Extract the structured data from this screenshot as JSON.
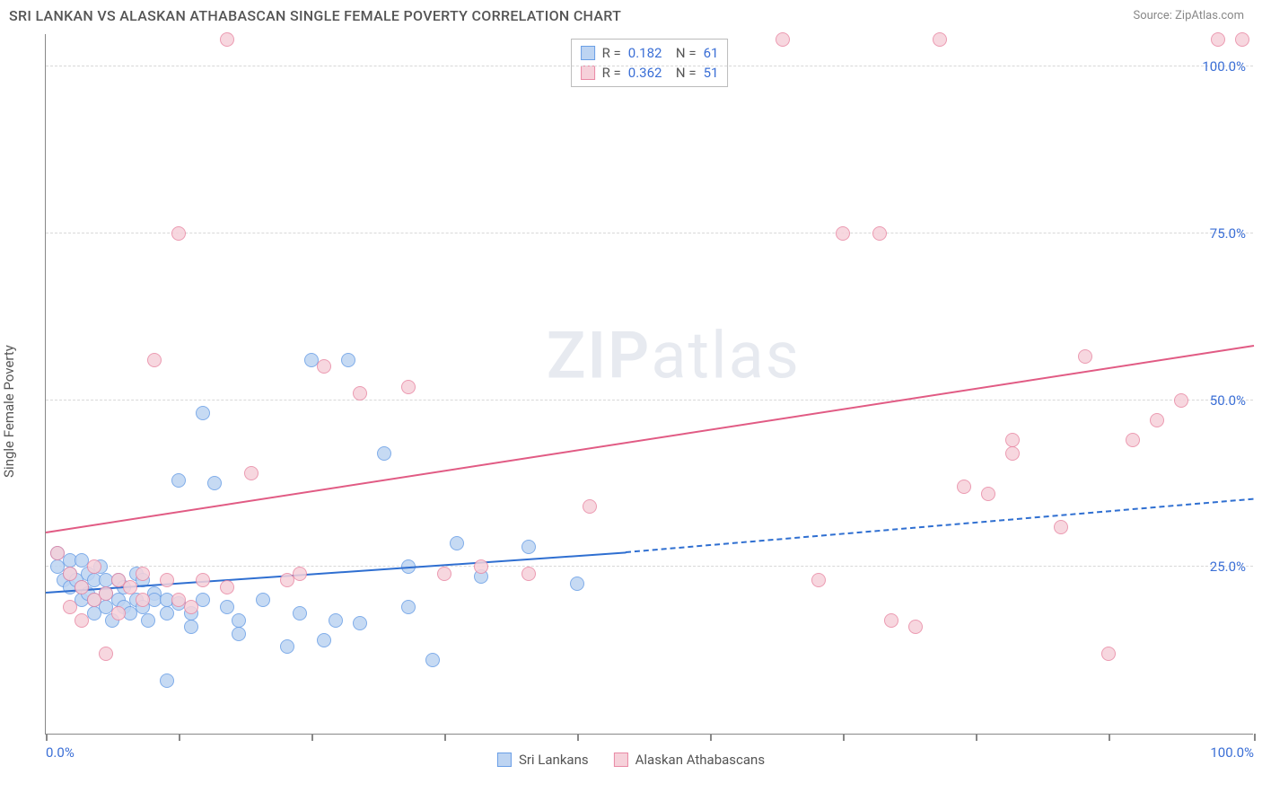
{
  "header": {
    "title": "SRI LANKAN VS ALASKAN ATHABASCAN SINGLE FEMALE POVERTY CORRELATION CHART",
    "source": "Source: ZipAtlas.com"
  },
  "chart": {
    "type": "scatter",
    "ylabel": "Single Female Poverty",
    "xlim": [
      0,
      100
    ],
    "ylim": [
      0,
      105
    ],
    "yticks": [
      25,
      50,
      75,
      100
    ],
    "ytick_labels": [
      "25.0%",
      "50.0%",
      "75.0%",
      "100.0%"
    ],
    "xticks": [
      0,
      11,
      22,
      33,
      44,
      55,
      66,
      77,
      88,
      100
    ],
    "xtick_labels_shown": {
      "0": "0.0%",
      "100": "100.0%"
    },
    "grid_color": "#d8d8d8",
    "axis_color": "#888888",
    "background_color": "#ffffff",
    "tick_label_color": "#3b6fd6",
    "marker_radius": 8,
    "marker_border": 1.5,
    "watermark": "ZIPatlas",
    "series": [
      {
        "name": "Sri Lankans",
        "fill_color": "#bdd4f2",
        "border_color": "#6a9fe6",
        "trend_color": "#2f6fd1",
        "trend": {
          "x1": 0,
          "y1": 21,
          "x2": 48,
          "y2": 27,
          "dashed_to_x": 100,
          "dashed_to_y": 35
        },
        "stats": {
          "R": "0.182",
          "N": "61"
        },
        "points": [
          [
            1,
            27
          ],
          [
            1,
            25
          ],
          [
            1.5,
            23
          ],
          [
            2,
            26
          ],
          [
            2,
            22
          ],
          [
            2,
            24
          ],
          [
            2.5,
            23
          ],
          [
            3,
            26
          ],
          [
            3,
            22
          ],
          [
            3,
            20
          ],
          [
            3.5,
            24
          ],
          [
            3.5,
            21
          ],
          [
            4,
            20
          ],
          [
            4,
            23
          ],
          [
            4,
            18
          ],
          [
            4.5,
            25
          ],
          [
            5,
            21
          ],
          [
            5,
            19
          ],
          [
            5,
            23
          ],
          [
            5.5,
            17
          ],
          [
            6,
            20
          ],
          [
            6,
            23
          ],
          [
            6.5,
            22
          ],
          [
            6.5,
            19
          ],
          [
            7,
            18
          ],
          [
            7.5,
            20
          ],
          [
            7.5,
            24
          ],
          [
            8,
            23
          ],
          [
            8,
            19
          ],
          [
            8.5,
            17
          ],
          [
            9,
            21
          ],
          [
            9,
            20
          ],
          [
            10,
            18
          ],
          [
            10,
            20
          ],
          [
            10,
            8
          ],
          [
            11,
            19.5
          ],
          [
            11,
            38
          ],
          [
            12,
            18
          ],
          [
            12,
            16
          ],
          [
            13,
            48
          ],
          [
            13,
            20
          ],
          [
            14,
            37.5
          ],
          [
            15,
            19
          ],
          [
            16,
            15
          ],
          [
            16,
            17
          ],
          [
            18,
            20
          ],
          [
            20,
            13
          ],
          [
            21,
            18
          ],
          [
            22,
            56
          ],
          [
            23,
            14
          ],
          [
            24,
            17
          ],
          [
            25,
            56
          ],
          [
            26,
            16.5
          ],
          [
            28,
            42
          ],
          [
            30,
            19
          ],
          [
            30,
            25
          ],
          [
            32,
            11
          ],
          [
            34,
            28.5
          ],
          [
            36,
            23.5
          ],
          [
            40,
            28
          ],
          [
            44,
            22.5
          ]
        ]
      },
      {
        "name": "Alaskan Athabascans",
        "fill_color": "#f6d1da",
        "border_color": "#e98aa5",
        "trend_color": "#e15b84",
        "trend": {
          "x1": 0,
          "y1": 30,
          "x2": 100,
          "y2": 58
        },
        "stats": {
          "R": "0.362",
          "N": "51"
        },
        "points": [
          [
            1,
            27
          ],
          [
            2,
            24
          ],
          [
            2,
            19
          ],
          [
            3,
            22
          ],
          [
            3,
            17
          ],
          [
            4,
            20
          ],
          [
            4,
            25
          ],
          [
            5,
            12
          ],
          [
            5,
            21
          ],
          [
            6,
            23
          ],
          [
            6,
            18
          ],
          [
            7,
            22
          ],
          [
            8,
            20
          ],
          [
            8,
            24
          ],
          [
            9,
            56
          ],
          [
            10,
            23
          ],
          [
            11,
            75
          ],
          [
            11,
            20
          ],
          [
            12,
            19
          ],
          [
            13,
            23
          ],
          [
            15,
            22
          ],
          [
            15,
            104
          ],
          [
            17,
            39
          ],
          [
            20,
            23
          ],
          [
            21,
            24
          ],
          [
            23,
            55
          ],
          [
            26,
            51
          ],
          [
            30,
            52
          ],
          [
            33,
            24
          ],
          [
            36,
            25
          ],
          [
            40,
            24
          ],
          [
            45,
            34
          ],
          [
            61,
            104
          ],
          [
            64,
            23
          ],
          [
            66,
            75
          ],
          [
            69,
            75
          ],
          [
            70,
            17
          ],
          [
            72,
            16
          ],
          [
            74,
            104
          ],
          [
            76,
            37
          ],
          [
            78,
            36
          ],
          [
            80,
            42
          ],
          [
            80,
            44
          ],
          [
            84,
            31
          ],
          [
            86,
            56.5
          ],
          [
            88,
            12
          ],
          [
            90,
            44
          ],
          [
            92,
            47
          ],
          [
            94,
            50
          ],
          [
            97,
            104
          ],
          [
            99,
            104
          ]
        ]
      }
    ]
  }
}
